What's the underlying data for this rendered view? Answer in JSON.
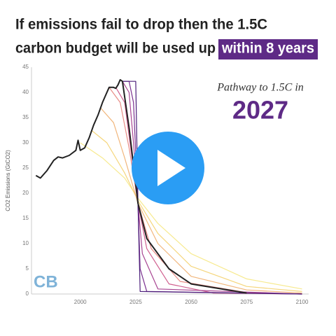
{
  "chart_data": {
    "type": "line",
    "title": [
      "If emissions fail to drop then the 1.5C",
      "carbon budget will be used up"
    ],
    "title_highlight": "within 8 years",
    "annotation": "Pathway to 1.5C in",
    "annotation_year": "2027",
    "logo": "CB",
    "y_label": "CO2 Emissions (GtCO2)",
    "xlim": [
      1978,
      2103
    ],
    "xticks": [
      2000,
      2025,
      2050,
      2075,
      2100
    ],
    "ylim": [
      0,
      45
    ],
    "yticks": [
      0,
      5,
      10,
      15,
      20,
      25,
      30,
      35,
      40,
      45
    ],
    "grid": false,
    "series": [
      {
        "color": "#f7ea8f",
        "x": [
          2000,
          2010,
          2020,
          2026,
          2035,
          2050,
          2075,
          2100
        ],
        "values": [
          30,
          27,
          23,
          19,
          14,
          8,
          3,
          1
        ]
      },
      {
        "color": "#f5d67c",
        "x": [
          2005,
          2012,
          2020,
          2026,
          2035,
          2050,
          2075,
          2100
        ],
        "values": [
          32.5,
          30,
          24,
          18.5,
          12,
          5.5,
          1.5,
          0.5
        ]
      },
      {
        "color": "#f1b67c",
        "x": [
          2009,
          2015,
          2020,
          2026,
          2035,
          2050,
          2075,
          2100
        ],
        "values": [
          37,
          34,
          27,
          18,
          10,
          3.5,
          0.8,
          0.2
        ]
      },
      {
        "color": "#e88c86",
        "x": [
          2013,
          2018,
          2022,
          2026,
          2032,
          2045,
          2075,
          2100
        ],
        "values": [
          41,
          38,
          29,
          18,
          9,
          2.5,
          0.3,
          0
        ]
      },
      {
        "color": "#d0608f",
        "x": [
          2016,
          2020,
          2023,
          2026,
          2030,
          2040,
          2060,
          2100
        ],
        "values": [
          41,
          38,
          28,
          18,
          9,
          2,
          0.2,
          0
        ]
      },
      {
        "color": "#a84592",
        "x": [
          2019,
          2022,
          2024,
          2026,
          2028,
          2035,
          2100
        ],
        "values": [
          42.2,
          40,
          30,
          18,
          8,
          1,
          0
        ]
      },
      {
        "color": "#7a2f8f",
        "x": [
          2019,
          2022,
          2024,
          2026,
          2027,
          2030,
          2100
        ],
        "values": [
          42.2,
          42.2,
          38,
          18,
          5,
          0.5,
          0
        ]
      },
      {
        "color": "#4b1e7a",
        "x": [
          2019,
          2025,
          2026,
          2027,
          2100
        ],
        "values": [
          42.2,
          42.2,
          18,
          0.5,
          0
        ]
      },
      {
        "color": "#222222",
        "x": [
          1980,
          1982,
          1985,
          1988,
          1990,
          1992,
          1995,
          1998,
          1999,
          2000,
          2002,
          2004,
          2006,
          2008,
          2010,
          2012,
          2013,
          2015,
          2016,
          2017,
          2018,
          2019,
          2022,
          2026,
          2030,
          2040,
          2050,
          2075
        ],
        "values": [
          23.5,
          23,
          24.5,
          26.5,
          27.2,
          27,
          27.5,
          28.5,
          30.5,
          28.5,
          29,
          31,
          33.5,
          35.5,
          38,
          40,
          41,
          41,
          40.8,
          41.5,
          42.5,
          42.2,
          33,
          18,
          11,
          5,
          2,
          0.2
        ]
      }
    ]
  }
}
